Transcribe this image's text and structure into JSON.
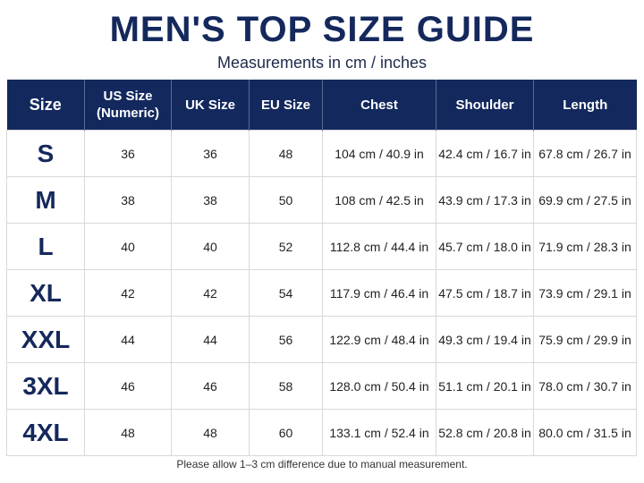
{
  "title": "MEN'S TOP SIZE GUIDE",
  "subtitle": "Measurements in cm / inches",
  "table": {
    "headers": [
      "Size",
      "US Size\n(Numeric)",
      "UK Size",
      "EU Size",
      "Chest",
      "Shoulder",
      "Length"
    ],
    "rows": [
      [
        "S",
        "36",
        "36",
        "48",
        "104 cm / 40.9 in",
        "42.4 cm / 16.7 in",
        "67.8 cm / 26.7 in"
      ],
      [
        "M",
        "38",
        "38",
        "50",
        "108 cm / 42.5 in",
        "43.9 cm / 17.3 in",
        "69.9 cm / 27.5 in"
      ],
      [
        "L",
        "40",
        "40",
        "52",
        "112.8 cm / 44.4 in",
        "45.7 cm / 18.0 in",
        "71.9 cm / 28.3 in"
      ],
      [
        "XL",
        "42",
        "42",
        "54",
        "117.9 cm / 46.4 in",
        "47.5 cm / 18.7 in",
        "73.9 cm / 29.1 in"
      ],
      [
        "XXL",
        "44",
        "44",
        "56",
        "122.9 cm / 48.4 in",
        "49.3 cm / 19.4 in",
        "75.9 cm / 29.9 in"
      ],
      [
        "3XL",
        "46",
        "46",
        "58",
        "128.0 cm / 50.4 in",
        "51.1 cm / 20.1 in",
        "78.0 cm / 30.7 in"
      ],
      [
        "4XL",
        "48",
        "48",
        "60",
        "133.1 cm / 52.4 in",
        "52.8 cm / 20.8 in",
        "80.0 cm / 31.5 in"
      ]
    ]
  },
  "footnote": "Please allow 1–3 cm difference due to manual measurement.",
  "colors": {
    "header_bg": "#13295e",
    "title": "#14285c"
  }
}
